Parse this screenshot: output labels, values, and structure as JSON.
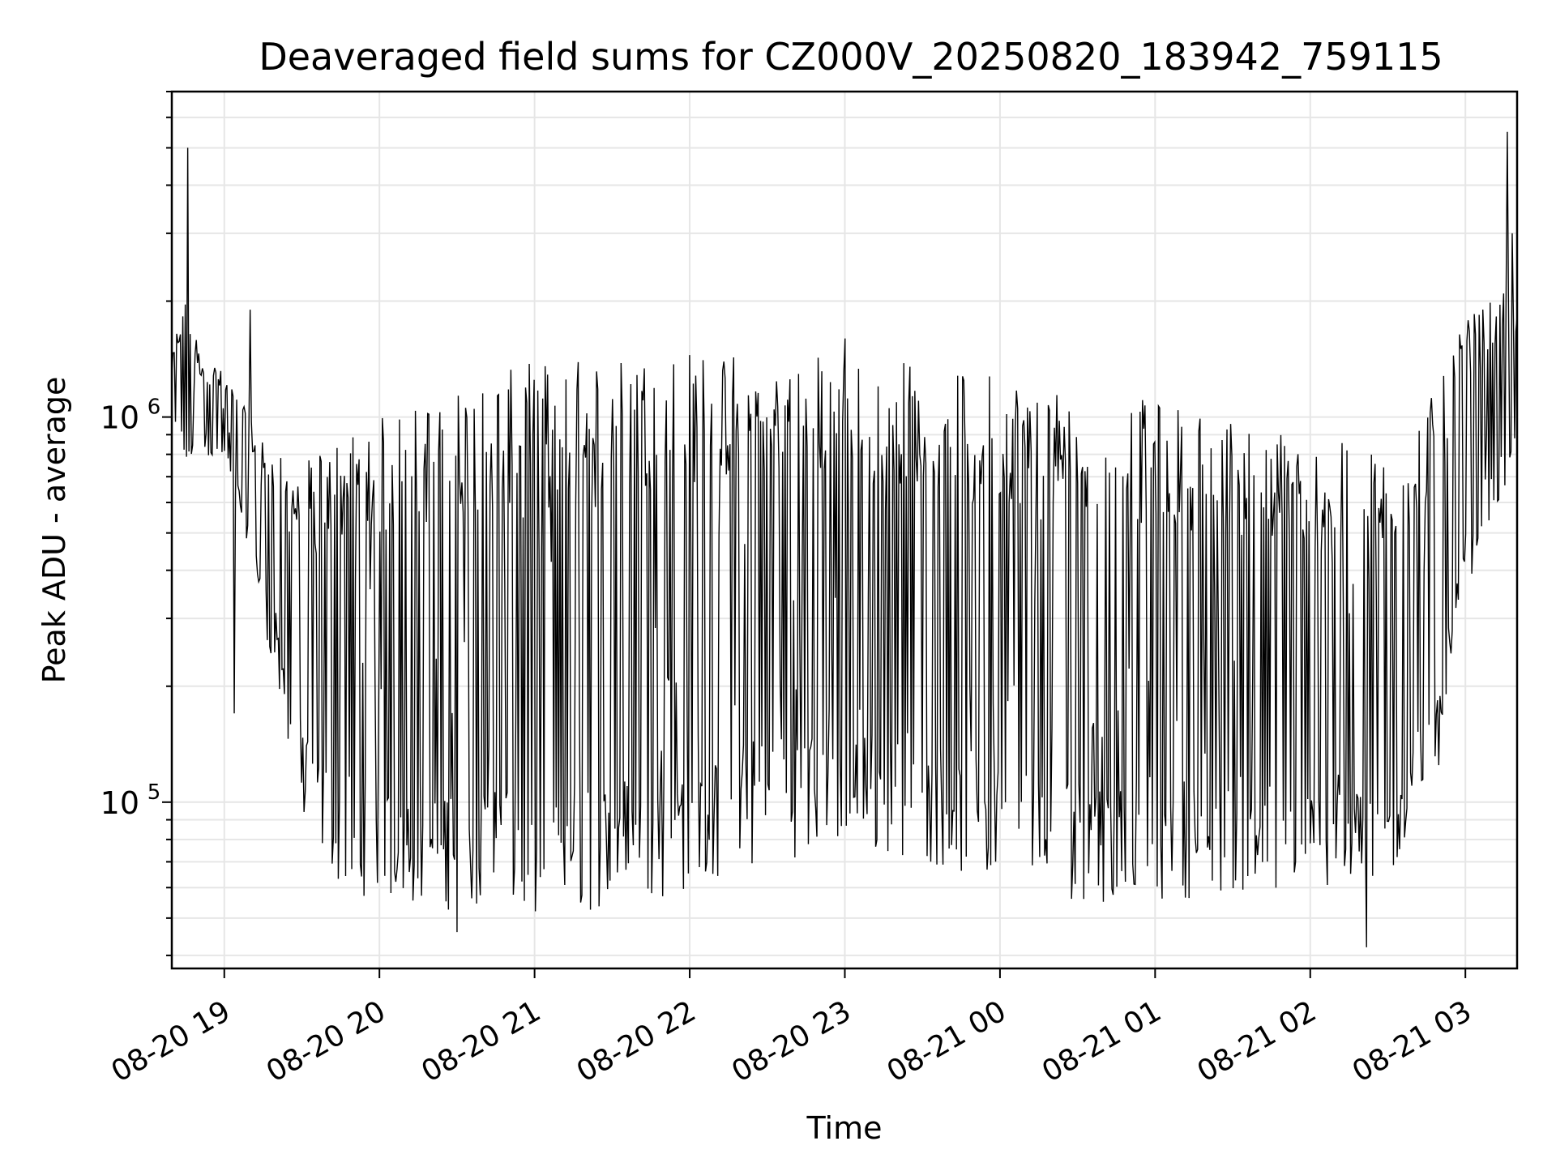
{
  "chart_data": {
    "type": "line",
    "title": "Deaveraged field sums for CZ000V_20250820_183942_759115",
    "xlabel": "Time",
    "ylabel": "Peak ADU - average",
    "yscale": "log",
    "ylim": [
      37000,
      7000000
    ],
    "xlim": [
      "2025-08-20 18:39:42",
      "2025-08-21 03:20:00"
    ],
    "grid": true,
    "line_color": "#000000",
    "x_ticks": [
      {
        "label": "08-20 19",
        "t": "2025-08-20 19:00"
      },
      {
        "label": "08-20 20",
        "t": "2025-08-20 20:00"
      },
      {
        "label": "08-20 21",
        "t": "2025-08-20 21:00"
      },
      {
        "label": "08-20 22",
        "t": "2025-08-20 22:00"
      },
      {
        "label": "08-20 23",
        "t": "2025-08-20 23:00"
      },
      {
        "label": "08-21 00",
        "t": "2025-08-21 00:00"
      },
      {
        "label": "08-21 01",
        "t": "2025-08-21 01:00"
      },
      {
        "label": "08-21 02",
        "t": "2025-08-21 02:00"
      },
      {
        "label": "08-21 03",
        "t": "2025-08-21 03:00"
      }
    ],
    "y_ticks": [
      {
        "value": 100000,
        "base": "10",
        "exp": "5"
      },
      {
        "value": 1000000,
        "base": "10",
        "exp": "6"
      }
    ],
    "envelope": [
      {
        "t": "2025-08-20 18:39:42",
        "low": 900000,
        "high": 1400000
      },
      {
        "t": "2025-08-20 18:45:00",
        "low": 700000,
        "high": 2400000
      },
      {
        "t": "2025-08-20 18:50:00",
        "low": 800000,
        "high": 1500000
      },
      {
        "t": "2025-08-20 19:00:00",
        "low": 750000,
        "high": 1300000
      },
      {
        "t": "2025-08-20 19:10:00",
        "low": 450000,
        "high": 1000000
      },
      {
        "t": "2025-08-20 19:20:00",
        "low": 200000,
        "high": 800000
      },
      {
        "t": "2025-08-20 19:30:00",
        "low": 90000,
        "high": 750000
      },
      {
        "t": "2025-08-20 19:45:00",
        "low": 60000,
        "high": 900000
      },
      {
        "t": "2025-08-20 20:00:00",
        "low": 55000,
        "high": 1000000
      },
      {
        "t": "2025-08-20 20:30:00",
        "low": 52000,
        "high": 1200000
      },
      {
        "t": "2025-08-20 21:00:00",
        "low": 50000,
        "high": 1400000
      },
      {
        "t": "2025-08-20 21:30:00",
        "low": 52000,
        "high": 1450000
      },
      {
        "t": "2025-08-20 22:00:00",
        "low": 58000,
        "high": 1500000
      },
      {
        "t": "2025-08-20 22:30:00",
        "low": 70000,
        "high": 1500000
      },
      {
        "t": "2025-08-20 23:00:00",
        "low": 75000,
        "high": 1450000
      },
      {
        "t": "2025-08-20 23:30:00",
        "low": 70000,
        "high": 1400000
      },
      {
        "t": "2025-08-21 00:00:00",
        "low": 60000,
        "high": 1300000
      },
      {
        "t": "2025-08-21 00:30:00",
        "low": 55000,
        "high": 1200000
      },
      {
        "t": "2025-08-21 01:00:00",
        "low": 55000,
        "high": 1100000
      },
      {
        "t": "2025-08-21 01:30:00",
        "low": 58000,
        "high": 1000000
      },
      {
        "t": "2025-08-21 02:00:00",
        "low": 55000,
        "high": 900000
      },
      {
        "t": "2025-08-21 02:30:00",
        "low": 60000,
        "high": 800000
      },
      {
        "t": "2025-08-21 02:50:00",
        "low": 120000,
        "high": 1200000
      },
      {
        "t": "2025-08-21 03:00:00",
        "low": 350000,
        "high": 1800000
      },
      {
        "t": "2025-08-21 03:10:00",
        "low": 550000,
        "high": 2000000
      },
      {
        "t": "2025-08-21 03:20:00",
        "low": 700000,
        "high": 2200000
      }
    ],
    "spikes": [
      {
        "t": "2025-08-20 18:46:00",
        "value": 5000000
      },
      {
        "t": "2025-08-20 19:10:00",
        "value": 1900000
      },
      {
        "t": "2025-08-20 23:00:00",
        "value": 1600000
      },
      {
        "t": "2025-08-21 03:16:00",
        "value": 5500000
      },
      {
        "t": "2025-08-21 03:18:00",
        "value": 3000000
      },
      {
        "t": "2025-08-20 19:04:00",
        "value": 170000
      },
      {
        "t": "2025-08-20 20:30:00",
        "value": 46000
      },
      {
        "t": "2025-08-21 02:22:00",
        "value": 42000
      }
    ],
    "sample_count": 1100
  }
}
